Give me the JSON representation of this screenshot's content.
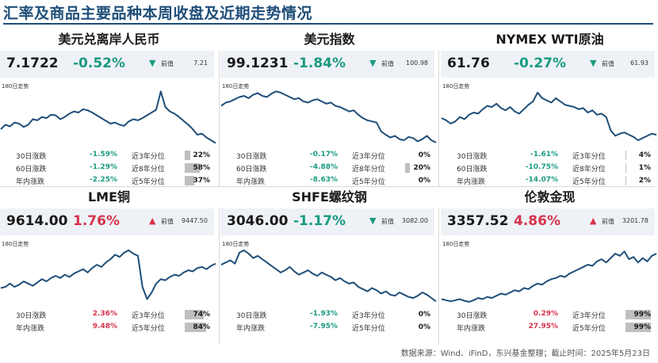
{
  "title": "汇率及商品主要品种本周收盘及近期走势情况",
  "footer": "数据来源：Wind、iFinD，东兴基金整理；截止时间：2025年5月23日",
  "labels": {
    "prev": "前值",
    "chart_note": "180日走势",
    "d30": "30日涨跌",
    "d60": "60日涨跌",
    "ytd": "年内涨跌",
    "p3": "近3年分位",
    "p8": "近8年分位",
    "p5": "近5年分位"
  },
  "colors": {
    "line": "#1f4e79",
    "down": "#1a9a80",
    "up": "#d6334b",
    "bar": "#bfbfbf",
    "header_bg": "#eef2f7"
  },
  "panels": [
    {
      "name": "美元兑离岸人民币",
      "last": "7.1722",
      "change": "-0.52%",
      "direction": "down",
      "arrow": "▼",
      "prev": "7.21",
      "rows": [
        {
          "label": "30日涨跌",
          "value": "-1.59%",
          "dir": "down",
          "plabel": "近3年分位",
          "pct": "22%",
          "pct_value": 22
        },
        {
          "label": "60日涨跌",
          "value": "-1.29%",
          "dir": "down",
          "plabel": "近8年分位",
          "pct": "58%",
          "pct_value": 58
        },
        {
          "label": "年内涨跌",
          "value": "-2.25%",
          "dir": "down",
          "plabel": "近5年分位",
          "pct": "37%",
          "pct_value": 37
        }
      ]
    },
    {
      "name": "美元指数",
      "last": "99.1231",
      "change": "-1.84%",
      "direction": "down",
      "arrow": "▼",
      "prev": "100.98",
      "rows": [
        {
          "label": "30日涨跌",
          "value": "-0.17%",
          "dir": "down",
          "plabel": "近3年分位",
          "pct": "0%",
          "pct_value": 0
        },
        {
          "label": "60日涨跌",
          "value": "-4.88%",
          "dir": "down",
          "plabel": "近8年分位",
          "pct": "20%",
          "pct_value": 20
        },
        {
          "label": "年内涨跌",
          "value": "-8.63%",
          "dir": "down",
          "plabel": "近5年分位",
          "pct": "0%",
          "pct_value": 0
        }
      ]
    },
    {
      "name": "NYMEX WTI原油",
      "last": "61.76",
      "change": "-0.27%",
      "direction": "down",
      "arrow": "▼",
      "prev": "61.93",
      "rows": [
        {
          "label": "30日涨跌",
          "value": "-1.61%",
          "dir": "down",
          "plabel": "近3年分位",
          "pct": "4%",
          "pct_value": 4
        },
        {
          "label": "60日涨跌",
          "value": "-10.75%",
          "dir": "down",
          "plabel": "近8年分位",
          "pct": "1%",
          "pct_value": 1
        },
        {
          "label": "年内涨跌",
          "value": "-14.07%",
          "dir": "down",
          "plabel": "近5年分位",
          "pct": "2%",
          "pct_value": 2
        }
      ]
    },
    {
      "name": "LME铜",
      "last": "9614.00",
      "change": "1.76%",
      "direction": "up",
      "arrow": "▲",
      "prev": "9447.50",
      "rows": [
        {
          "label": "30日涨跌",
          "value": "2.36%",
          "dir": "up",
          "plabel": "近3年分位",
          "pct": "74%",
          "pct_value": 74
        },
        {
          "label": "年内涨跌",
          "value": "9.48%",
          "dir": "up",
          "plabel": "近5年分位",
          "pct": "84%",
          "pct_value": 84
        }
      ]
    },
    {
      "name": "SHFE螺纹钢",
      "last": "3046.00",
      "change": "-1.17%",
      "direction": "down",
      "arrow": "▼",
      "prev": "3082.00",
      "rows": [
        {
          "label": "30日涨跌",
          "value": "-1.93%",
          "dir": "down",
          "plabel": "近3年分位",
          "pct": "0%",
          "pct_value": 0
        },
        {
          "label": "年内涨跌",
          "value": "-7.95%",
          "dir": "down",
          "plabel": "近5年分位",
          "pct": "0%",
          "pct_value": 0
        }
      ]
    },
    {
      "name": "伦敦金现",
      "last": "3357.52",
      "change": "4.86%",
      "direction": "up",
      "arrow": "▲",
      "prev": "3201.78",
      "rows": [
        {
          "label": "30日涨跌",
          "value": "0.29%",
          "dir": "up",
          "plabel": "近3年分位",
          "pct": "99%",
          "pct_value": 99
        },
        {
          "label": "年内涨跌",
          "value": "27.95%",
          "dir": "up",
          "plabel": "近5年分位",
          "pct": "99%",
          "pct_value": 99
        }
      ]
    }
  ],
  "chart_data": [
    {
      "type": "line",
      "series_of": "美元兑离岸人民币",
      "values": [
        0.3,
        0.38,
        0.35,
        0.42,
        0.4,
        0.34,
        0.38,
        0.48,
        0.46,
        0.52,
        0.5,
        0.56,
        0.55,
        0.48,
        0.52,
        0.58,
        0.62,
        0.6,
        0.66,
        0.64,
        0.6,
        0.55,
        0.5,
        0.45,
        0.4,
        0.42,
        0.38,
        0.36,
        0.44,
        0.48,
        0.46,
        0.5,
        0.55,
        0.6,
        0.65,
        0.98,
        0.7,
        0.62,
        0.58,
        0.52,
        0.45,
        0.38,
        0.3,
        0.2,
        0.22,
        0.15,
        0.1,
        0.05
      ]
    },
    {
      "type": "line",
      "series_of": "美元指数",
      "values": [
        0.72,
        0.78,
        0.8,
        0.84,
        0.88,
        0.9,
        0.86,
        0.92,
        0.95,
        0.9,
        0.88,
        0.94,
        0.98,
        0.96,
        0.92,
        0.88,
        0.84,
        0.86,
        0.8,
        0.78,
        0.82,
        0.84,
        0.8,
        0.76,
        0.78,
        0.72,
        0.7,
        0.66,
        0.62,
        0.64,
        0.56,
        0.5,
        0.46,
        0.44,
        0.42,
        0.26,
        0.2,
        0.15,
        0.18,
        0.12,
        0.1,
        0.16,
        0.14,
        0.08,
        0.12,
        0.18,
        0.1,
        0.06
      ]
    },
    {
      "type": "line",
      "series_of": "NYMEX WTI原油",
      "values": [
        0.5,
        0.46,
        0.4,
        0.44,
        0.52,
        0.48,
        0.56,
        0.6,
        0.58,
        0.66,
        0.72,
        0.7,
        0.76,
        0.68,
        0.64,
        0.7,
        0.62,
        0.58,
        0.66,
        0.74,
        0.8,
        0.96,
        0.86,
        0.82,
        0.78,
        0.86,
        0.8,
        0.74,
        0.72,
        0.7,
        0.66,
        0.68,
        0.6,
        0.64,
        0.56,
        0.58,
        0.52,
        0.28,
        0.18,
        0.22,
        0.24,
        0.2,
        0.16,
        0.1,
        0.14,
        0.18,
        0.22,
        0.2
      ]
    },
    {
      "type": "line",
      "series_of": "LME铜",
      "values": [
        0.28,
        0.3,
        0.36,
        0.3,
        0.34,
        0.4,
        0.36,
        0.32,
        0.38,
        0.44,
        0.4,
        0.46,
        0.5,
        0.46,
        0.52,
        0.48,
        0.54,
        0.58,
        0.62,
        0.56,
        0.64,
        0.7,
        0.66,
        0.74,
        0.8,
        0.88,
        0.84,
        0.92,
        0.96,
        0.9,
        0.86,
        0.3,
        0.08,
        0.2,
        0.36,
        0.44,
        0.42,
        0.48,
        0.52,
        0.5,
        0.56,
        0.6,
        0.58,
        0.64,
        0.66,
        0.62,
        0.68,
        0.72
      ]
    },
    {
      "type": "line",
      "series_of": "SHFE螺纹钢",
      "values": [
        0.7,
        0.74,
        0.78,
        0.72,
        0.92,
        0.96,
        0.9,
        0.82,
        0.86,
        0.8,
        0.74,
        0.68,
        0.62,
        0.56,
        0.6,
        0.66,
        0.58,
        0.52,
        0.56,
        0.6,
        0.54,
        0.5,
        0.56,
        0.52,
        0.48,
        0.42,
        0.46,
        0.4,
        0.36,
        0.38,
        0.3,
        0.26,
        0.22,
        0.28,
        0.24,
        0.18,
        0.22,
        0.16,
        0.14,
        0.2,
        0.16,
        0.12,
        0.1,
        0.14,
        0.2,
        0.16,
        0.1,
        0.04
      ]
    },
    {
      "type": "line",
      "series_of": "伦敦金现",
      "values": [
        0.08,
        0.06,
        0.04,
        0.06,
        0.08,
        0.05,
        0.03,
        0.06,
        0.1,
        0.08,
        0.12,
        0.1,
        0.14,
        0.18,
        0.16,
        0.2,
        0.24,
        0.22,
        0.28,
        0.26,
        0.32,
        0.36,
        0.34,
        0.4,
        0.44,
        0.46,
        0.5,
        0.48,
        0.54,
        0.58,
        0.62,
        0.66,
        0.7,
        0.68,
        0.76,
        0.8,
        0.74,
        0.82,
        0.9,
        0.86,
        0.94,
        0.8,
        0.84,
        0.74,
        0.82,
        0.76,
        0.86,
        0.9
      ]
    }
  ]
}
